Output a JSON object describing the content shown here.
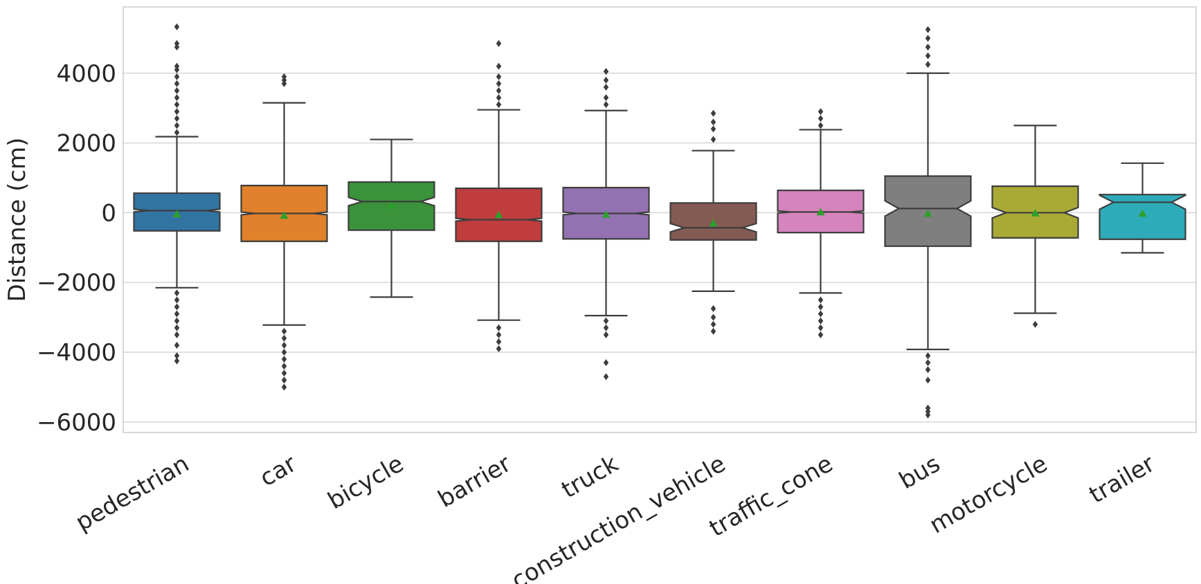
{
  "chart_data": {
    "type": "box",
    "title": "",
    "xlabel": "",
    "ylabel": "Distance (cm)",
    "ylim": [
      -6300,
      5900
    ],
    "y_ticks": [
      {
        "value": 4000,
        "label": "4000"
      },
      {
        "value": 2000,
        "label": "2000"
      },
      {
        "value": 0,
        "label": "0"
      },
      {
        "value": -2000,
        "label": "−2000"
      },
      {
        "value": -4000,
        "label": "−4000"
      },
      {
        "value": -6000,
        "label": "−6000"
      }
    ],
    "grid": true,
    "notched": true,
    "show_means": true,
    "mean_marker_color": "#2ca02c",
    "line_color": "#3d3d3d",
    "categories": [
      "pedestrian",
      "car",
      "bicycle",
      "barrier",
      "truck",
      "construction_vehicle",
      "traffic_cone",
      "bus",
      "motorcycle",
      "trailer"
    ],
    "boxes": [
      {
        "category": "pedestrian",
        "color": "#3274a1",
        "q1": -520,
        "median": 60,
        "q3": 560,
        "notch_low": 20,
        "notch_high": 100,
        "whisker_low": -2150,
        "whisker_high": 2180,
        "mean": -40,
        "outliers": [
          2300,
          2500,
          2700,
          2900,
          3100,
          3300,
          3500,
          3700,
          3900,
          4100,
          4200,
          4750,
          4850,
          5330,
          -2300,
          -2500,
          -2700,
          -2900,
          -3100,
          -3300,
          -3500,
          -3800,
          -4100,
          -4250
        ]
      },
      {
        "category": "car",
        "color": "#e1812c",
        "q1": -820,
        "median": -20,
        "q3": 780,
        "notch_low": -60,
        "notch_high": 20,
        "whisker_low": -3220,
        "whisker_high": 3150,
        "mean": -80,
        "outliers": [
          3700,
          3800,
          3900,
          -3400,
          -3600,
          -3800,
          -4000,
          -4200,
          -4400,
          -4600,
          -4800,
          -5000
        ]
      },
      {
        "category": "bicycle",
        "color": "#3a923a",
        "q1": -500,
        "median": 320,
        "q3": 880,
        "notch_low": 200,
        "notch_high": 440,
        "whisker_low": -2420,
        "whisker_high": 2100,
        "mean": 200,
        "outliers": []
      },
      {
        "category": "barrier",
        "color": "#c03d3e",
        "q1": -820,
        "median": -200,
        "q3": 700,
        "notch_low": -240,
        "notch_high": -160,
        "whisker_low": -3080,
        "whisker_high": 2950,
        "mean": -60,
        "outliers": [
          3100,
          3300,
          3500,
          3700,
          3900,
          4200,
          4850,
          -3300,
          -3500,
          -3700,
          -3900
        ]
      },
      {
        "category": "truck",
        "color": "#9372b2",
        "q1": -750,
        "median": -20,
        "q3": 720,
        "notch_low": -60,
        "notch_high": 20,
        "whisker_low": -2950,
        "whisker_high": 2930,
        "mean": -50,
        "outliers": [
          3100,
          3300,
          3600,
          3800,
          4050,
          -3100,
          -3300,
          -3500,
          -4300,
          -4700
        ]
      },
      {
        "category": "construction_vehicle",
        "color": "#845b53",
        "q1": -780,
        "median": -430,
        "q3": 280,
        "notch_low": -550,
        "notch_high": -310,
        "whisker_low": -2250,
        "whisker_high": 1780,
        "mean": -300,
        "outliers": [
          2100,
          2400,
          2600,
          2850,
          -2750,
          -3000,
          -3200,
          -3400
        ]
      },
      {
        "category": "traffic_cone",
        "color": "#d684bd",
        "q1": -570,
        "median": 20,
        "q3": 640,
        "notch_low": -10,
        "notch_high": 50,
        "whisker_low": -2300,
        "whisker_high": 2380,
        "mean": 20,
        "outliers": [
          2500,
          2700,
          2900,
          -2500,
          -2700,
          -2900,
          -3100,
          -3300,
          -3500
        ]
      },
      {
        "category": "bus",
        "color": "#7f7f7f",
        "q1": -960,
        "median": 120,
        "q3": 1050,
        "notch_low": -100,
        "notch_high": 340,
        "whisker_low": -3920,
        "whisker_high": 4000,
        "mean": -20,
        "outliers": [
          4250,
          4500,
          4750,
          5000,
          5250,
          -4100,
          -4300,
          -4500,
          -4800,
          -5600,
          -5700,
          -5800
        ]
      },
      {
        "category": "motorcycle",
        "color": "#a9aa35",
        "q1": -720,
        "median": 0,
        "q3": 760,
        "notch_low": -150,
        "notch_high": 150,
        "whisker_low": -2880,
        "whisker_high": 2500,
        "mean": -10,
        "outliers": [
          -3200
        ]
      },
      {
        "category": "trailer",
        "color": "#2eabb8",
        "q1": -760,
        "median": 300,
        "q3": 520,
        "notch_low": 100,
        "notch_high": 500,
        "whisker_low": -1150,
        "whisker_high": 1420,
        "mean": -20,
        "outliers": []
      }
    ]
  }
}
